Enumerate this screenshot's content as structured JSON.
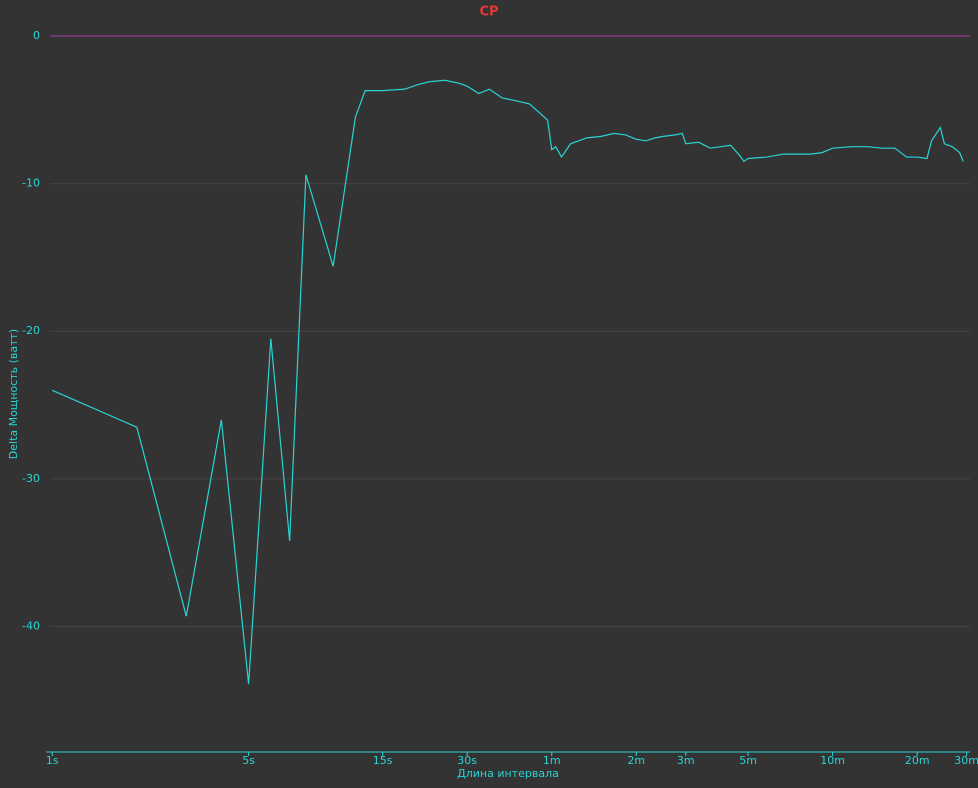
{
  "chart_data": {
    "type": "line",
    "title": "CP",
    "x_label": "Длина интервала",
    "y_label": "Delta  Мощность (ватт)",
    "log_x": true,
    "grid": true,
    "zero_line_color": "#b03cb0",
    "xlim": [
      0.95,
      1850
    ],
    "ylim": [
      -48.5,
      0.5
    ],
    "xticks": [
      {
        "value": 1,
        "label": "1s"
      },
      {
        "value": 5,
        "label": "5s"
      },
      {
        "value": 15,
        "label": "15s"
      },
      {
        "value": 30,
        "label": "30s"
      },
      {
        "value": 60,
        "label": "1m"
      },
      {
        "value": 120,
        "label": "2m"
      },
      {
        "value": 180,
        "label": "3m"
      },
      {
        "value": 300,
        "label": "5m"
      },
      {
        "value": 600,
        "label": "10m"
      },
      {
        "value": 1200,
        "label": "20m"
      },
      {
        "value": 1800,
        "label": "30m"
      }
    ],
    "yticks": [
      0,
      -10,
      -20,
      -30,
      -40
    ],
    "x": [
      1,
      2,
      3,
      4,
      5,
      6,
      7,
      8,
      10,
      12,
      13,
      15,
      18,
      20,
      22,
      25,
      28,
      30,
      33,
      36,
      40,
      45,
      50,
      55,
      58,
      60,
      62,
      65,
      70,
      80,
      90,
      100,
      110,
      120,
      130,
      140,
      150,
      165,
      175,
      180,
      200,
      220,
      240,
      260,
      280,
      290,
      300,
      350,
      400,
      450,
      500,
      550,
      600,
      700,
      800,
      900,
      1000,
      1100,
      1200,
      1300,
      1350,
      1450,
      1500,
      1600,
      1700,
      1750
    ],
    "series": [
      {
        "name": "Delta",
        "color": "#2ad4d4",
        "values": [
          -24.0,
          -26.5,
          -39.3,
          -26.0,
          -43.9,
          -20.5,
          -34.2,
          -9.4,
          -15.6,
          -5.5,
          -3.7,
          -3.7,
          -3.6,
          -3.3,
          -3.1,
          -3.0,
          -3.2,
          -3.4,
          -3.9,
          -3.6,
          -4.2,
          -4.4,
          -4.6,
          -5.3,
          -5.7,
          -7.7,
          -7.5,
          -8.2,
          -7.3,
          -6.9,
          -6.8,
          -6.6,
          -6.7,
          -7.0,
          -7.1,
          -6.9,
          -6.8,
          -6.7,
          -6.6,
          -7.3,
          -7.2,
          -7.6,
          -7.5,
          -7.4,
          -8.1,
          -8.5,
          -8.3,
          -8.2,
          -8.0,
          -8.0,
          -8.0,
          -7.9,
          -7.6,
          -7.5,
          -7.5,
          -7.6,
          -7.6,
          -8.2,
          -8.2,
          -8.3,
          -7.1,
          -6.2,
          -7.3,
          -7.5,
          -7.9,
          -8.5
        ]
      }
    ]
  }
}
